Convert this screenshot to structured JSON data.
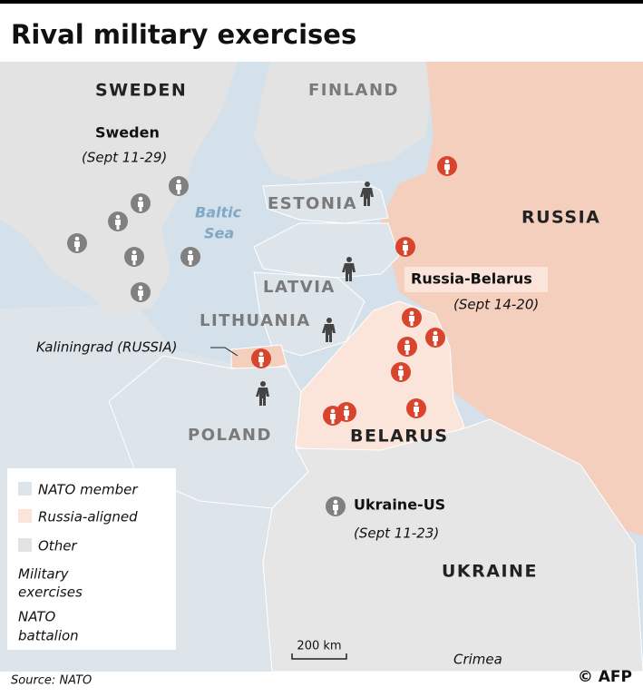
{
  "title": "Rival military exercises",
  "countries": {
    "sweden": "SWEDEN",
    "finland": "FINLAND",
    "estonia": "ESTONIA",
    "latvia": "LATVIA",
    "lithuania": "LITHUANIA",
    "poland": "POLAND",
    "belarus": "BELARUS",
    "russia": "RUSSIA",
    "ukraine": "UKRAINE"
  },
  "sea": [
    "Baltic",
    "Sea"
  ],
  "places": {
    "kaliningrad": "Kaliningrad (RUSSIA)",
    "crimea": "Crimea"
  },
  "exercises": [
    {
      "name": "Sweden",
      "dates": "(Sept 11-29)"
    },
    {
      "name": "Russia-Belarus",
      "dates": "(Sept 14-20)"
    },
    {
      "name": "Ukraine-US",
      "dates": "(Sept 11-23)"
    }
  ],
  "legend": {
    "nato_member": "NATO member",
    "russia_aligned": "Russia-aligned",
    "other": "Other",
    "military_exercises": [
      "Military",
      "exercises"
    ],
    "nato_battalion": [
      "NATO",
      "battalion"
    ]
  },
  "scale": "200 km",
  "source": "Source: NATO",
  "credit": "© AFP"
}
